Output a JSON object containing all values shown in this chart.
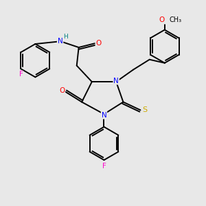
{
  "background_color": "#e8e8e8",
  "atom_colors": {
    "C": "#000000",
    "N": "#0000ff",
    "O": "#ff0000",
    "F": "#ff00cc",
    "S": "#ccaa00",
    "H": "#008080"
  },
  "bond_color": "#000000",
  "figsize": [
    3.0,
    3.0
  ],
  "dpi": 100
}
